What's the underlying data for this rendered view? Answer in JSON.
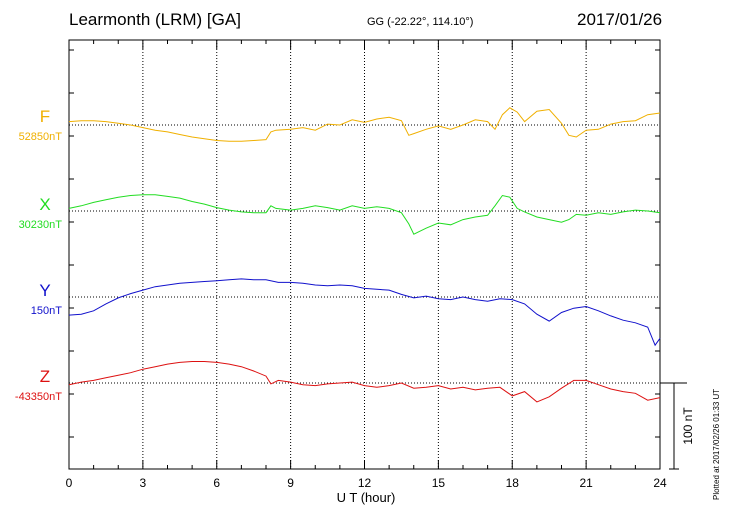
{
  "header": {
    "station": "Learmonth (LRM)  [GA]",
    "coords": "GG (-22.22°, 114.10°)",
    "date": "2017/01/26"
  },
  "footer": {
    "plotted": "Plotted at 2017/02/26 01:33 UT"
  },
  "chart_data": {
    "type": "line",
    "xlabel": "U T (hour)",
    "xlim": [
      0,
      24
    ],
    "x_ticks": [
      "0",
      "3",
      "6",
      "9",
      "12",
      "15",
      "18",
      "21",
      "24"
    ],
    "scale_bar_label": "100 nT",
    "grid": true,
    "series": [
      {
        "name": "F",
        "baseline": "52850nT",
        "color": "#f0b000",
        "x": [
          0,
          0.5,
          1,
          1.5,
          2,
          2.5,
          3,
          3.5,
          4,
          4.5,
          5,
          5.5,
          6,
          6.5,
          7,
          7.5,
          8,
          8.2,
          8.4,
          9,
          9.5,
          10,
          10.5,
          11,
          11.5,
          12,
          12.5,
          13,
          13.5,
          13.8,
          14,
          14.5,
          15,
          15.5,
          16,
          16.5,
          17,
          17.3,
          17.6,
          17.9,
          18.2,
          18.5,
          19,
          19.5,
          20,
          20.3,
          20.6,
          21,
          21.5,
          22,
          22.5,
          23,
          23.5,
          24
        ],
        "values": [
          4,
          5,
          5,
          4,
          2,
          0,
          -3,
          -6,
          -8,
          -11,
          -14,
          -16,
          -18,
          -19,
          -19,
          -18,
          -17,
          -8,
          -6,
          -5,
          -3,
          -6,
          1,
          0,
          6,
          3,
          7,
          9,
          5,
          -12,
          -10,
          -5,
          -1,
          -5,
          0,
          6,
          4,
          -5,
          12,
          20,
          15,
          4,
          16,
          18,
          2,
          -12,
          -14,
          -6,
          -5,
          1,
          4,
          5,
          12,
          14
        ]
      },
      {
        "name": "X",
        "baseline": "30230nT",
        "color": "#22dd22",
        "x": [
          0,
          0.5,
          1,
          1.5,
          2,
          2.5,
          3,
          3.5,
          4,
          4.5,
          5,
          5.5,
          6,
          6.5,
          7,
          7.5,
          8,
          8.2,
          8.4,
          9,
          9.5,
          10,
          10.5,
          11,
          11.5,
          12,
          12.5,
          13,
          13.5,
          13.8,
          14,
          14.5,
          15,
          15.5,
          16,
          16.5,
          17,
          17.3,
          17.6,
          17.9,
          18.2,
          18.5,
          19,
          19.5,
          20,
          20.3,
          20.6,
          21,
          21.5,
          22,
          22.5,
          23,
          23.5,
          24
        ],
        "values": [
          3,
          6,
          10,
          13,
          16,
          18,
          19,
          19,
          17,
          15,
          11,
          8,
          4,
          1,
          -1,
          -2,
          -2,
          6,
          3,
          1,
          3,
          6,
          4,
          1,
          6,
          3,
          5,
          3,
          -2,
          -15,
          -27,
          -20,
          -14,
          -16,
          -10,
          -7,
          -5,
          6,
          18,
          16,
          3,
          -1,
          -7,
          -10,
          -13,
          -10,
          -4,
          -5,
          -2,
          -4,
          -1,
          1,
          0,
          -2
        ]
      },
      {
        "name": "Y",
        "baseline": "150nT",
        "color": "#1111cc",
        "x": [
          0,
          0.5,
          1,
          1.5,
          2,
          2.5,
          3,
          3.5,
          4,
          4.5,
          5,
          5.5,
          6,
          6.5,
          7,
          7.5,
          8,
          8.5,
          9,
          9.5,
          10,
          10.5,
          11,
          11.5,
          12,
          12.5,
          13,
          13.5,
          14,
          14.5,
          15,
          15.5,
          16,
          16.5,
          17,
          17.5,
          18,
          18.5,
          19,
          19.5,
          20,
          20.5,
          21,
          21.5,
          22,
          22.5,
          23,
          23.5,
          23.8,
          24
        ],
        "values": [
          -21,
          -20,
          -16,
          -8,
          -1,
          4,
          8,
          12,
          14,
          16,
          17,
          18,
          19,
          20,
          21,
          20,
          20,
          17,
          17,
          16,
          14,
          13,
          14,
          13,
          10,
          9,
          8,
          3,
          -1,
          1,
          -2,
          -3,
          0,
          -3,
          -5,
          -2,
          -3,
          -8,
          -20,
          -28,
          -18,
          -13,
          -11,
          -16,
          -22,
          -27,
          -30,
          -35,
          -56,
          -48
        ]
      },
      {
        "name": "Z",
        "baseline": "-43350nT",
        "color": "#dd1111",
        "x": [
          0,
          0.5,
          1,
          1.5,
          2,
          2.5,
          3,
          3.5,
          4,
          4.5,
          5,
          5.5,
          6,
          6.5,
          7,
          7.5,
          8,
          8.2,
          8.5,
          9,
          9.5,
          10,
          10.5,
          11,
          11.5,
          12,
          12.5,
          13,
          13.5,
          14,
          14.5,
          15,
          15.5,
          16,
          16.5,
          17,
          17.5,
          18,
          18.5,
          19,
          19.5,
          20,
          20.5,
          21,
          21.5,
          22,
          22.5,
          23,
          23.5,
          24
        ],
        "values": [
          -2,
          1,
          3,
          6,
          9,
          12,
          16,
          19,
          22,
          24,
          25,
          25,
          24,
          22,
          19,
          14,
          8,
          -1,
          3,
          1,
          -2,
          -3,
          -1,
          0,
          1,
          -3,
          -5,
          -3,
          0,
          -6,
          -5,
          -3,
          -7,
          -5,
          -8,
          -6,
          -5,
          -15,
          -10,
          -22,
          -16,
          -6,
          3,
          3,
          -2,
          -7,
          -10,
          -12,
          -20,
          -17
        ]
      }
    ]
  }
}
